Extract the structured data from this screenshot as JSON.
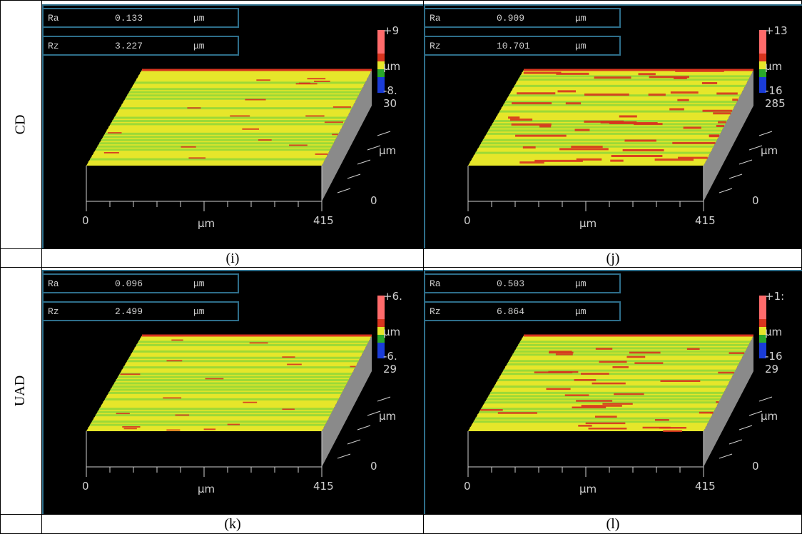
{
  "rows": [
    {
      "label": "CD"
    },
    {
      "label": "UAD"
    }
  ],
  "panels": [
    {
      "caption": "(i)",
      "ra": "0.133",
      "rz": "3.227",
      "unit": "μm",
      "ra_label": "Ra",
      "rz_label": "Rz",
      "scale_top": "+9",
      "scale_unit": "μm",
      "scale_bottom": "-8.",
      "scale_depth": "30",
      "roughness": 0.25
    },
    {
      "caption": "(j)",
      "ra": "0.909",
      "rz": "10.701",
      "unit": "μm",
      "ra_label": "Ra",
      "rz_label": "Rz",
      "scale_top": "+13",
      "scale_unit": "μm",
      "scale_bottom": "-16",
      "scale_depth": "285",
      "roughness": 1.0
    },
    {
      "caption": "(k)",
      "ra": "0.096",
      "rz": "2.499",
      "unit": "μm",
      "ra_label": "Ra",
      "rz_label": "Rz",
      "scale_top": "+6.",
      "scale_unit": "μm",
      "scale_bottom": "-6.",
      "scale_depth": "29",
      "roughness": 0.2
    },
    {
      "caption": "(l)",
      "ra": "0.503",
      "rz": "6.864",
      "unit": "μm",
      "ra_label": "Ra",
      "rz_label": "Rz",
      "scale_top": "+1:",
      "scale_unit": "μm",
      "scale_bottom": "-16",
      "scale_depth": "29",
      "roughness": 0.7
    }
  ],
  "axes": {
    "x_start": "0",
    "x_end": "415",
    "x_unit": "μm",
    "y_unit": "μm",
    "y_zero": "0"
  },
  "colors": {
    "panel_bg": "#000000",
    "box_border": "#2e6e8a",
    "surface_green": "#8bd63a",
    "surface_yellow": "#e6e62a",
    "surface_red": "#d8341e",
    "side_gray": "#8a8a8a"
  }
}
